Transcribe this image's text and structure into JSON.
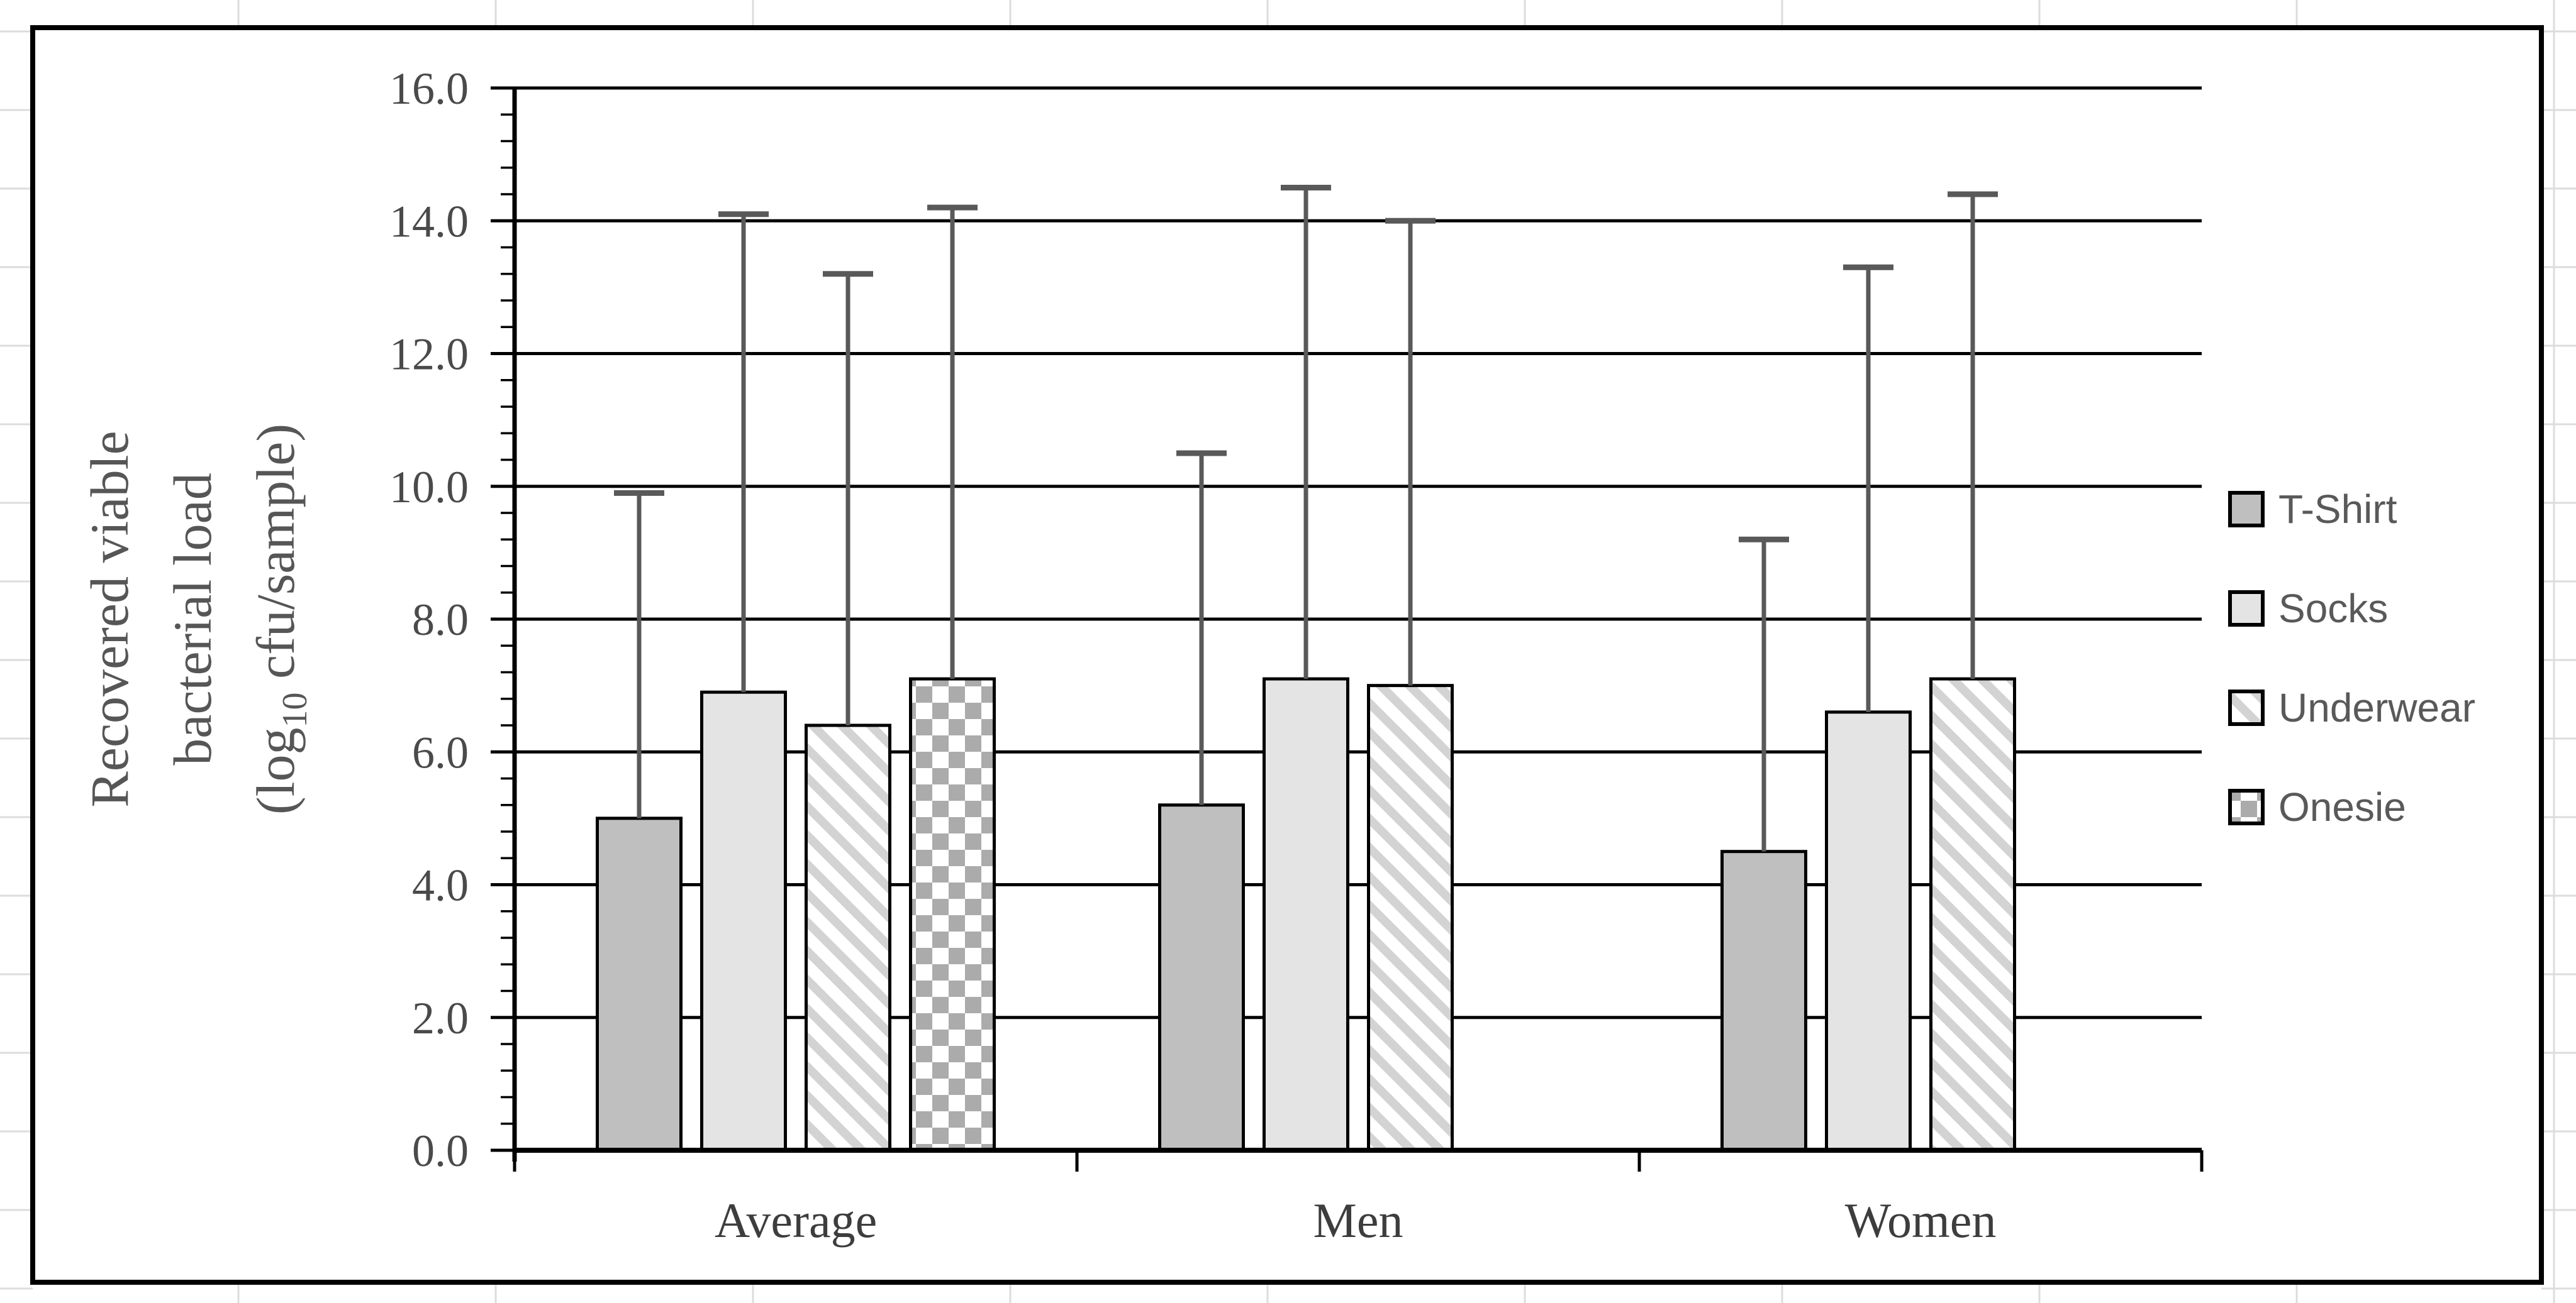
{
  "page": {
    "description": "Excel-style clustered bar chart with error bars placed on a spreadsheet grid",
    "background_color": "#ffffff",
    "spreadsheet_gridline_color": "#dcdcdc",
    "chart_border_color": "#000000"
  },
  "chart_data": {
    "type": "bar",
    "title": "",
    "categories": [
      "Average",
      "Men",
      "Women"
    ],
    "series": [
      {
        "name": "T-Shirt",
        "pattern": "solid",
        "fill": "#bfbfbf",
        "pattern_color": "#bfbfbf",
        "values": [
          5.0,
          5.2,
          4.5
        ],
        "error_top": [
          9.9,
          10.5,
          9.2
        ]
      },
      {
        "name": "Socks",
        "pattern": "solid",
        "fill": "#e4e4e4",
        "pattern_color": "#e4e4e4",
        "values": [
          6.9,
          7.1,
          6.6
        ],
        "error_top": [
          14.1,
          14.5,
          13.3
        ]
      },
      {
        "name": "Underwear",
        "pattern": "diagonal-down-hatch",
        "fill": "#ffffff",
        "pattern_color": "#d3d3d3",
        "values": [
          6.4,
          7.0,
          7.1
        ],
        "error_top": [
          13.2,
          14.0,
          14.4
        ]
      },
      {
        "name": "Onesie",
        "pattern": "checkerboard",
        "fill": "#ffffff",
        "pattern_color": "#ababab",
        "values": [
          7.1,
          null,
          null
        ],
        "error_top": [
          14.2,
          null,
          null
        ]
      }
    ],
    "ylabel_lines": [
      "Recovered viable",
      "bacterial load"
    ],
    "ylabel_sub_line": {
      "pre": "(log",
      "sub": "10",
      "post": " cfu/sample)"
    },
    "xlabel": "",
    "ylim": [
      0,
      16
    ],
    "ytick_step": 2,
    "yticks": [
      "0.0",
      "2.0",
      "4.0",
      "6.0",
      "8.0",
      "10.0",
      "12.0",
      "14.0",
      "16.0"
    ],
    "minor_ticks_per_major": 4,
    "grid": "horizontal-major",
    "legend": {
      "position": "right",
      "entries": [
        "T-Shirt",
        "Socks",
        "Underwear",
        "Onesie"
      ]
    },
    "colors": {
      "gridline": "#000000",
      "axis_line": "#000000",
      "bar_outline": "#000000",
      "error_bar": "#595959",
      "tick_label_text": "#4a4a4a",
      "category_label_text": "#3d3d3d",
      "axis_title_text": "#565656",
      "legend_text": "#595959"
    }
  }
}
